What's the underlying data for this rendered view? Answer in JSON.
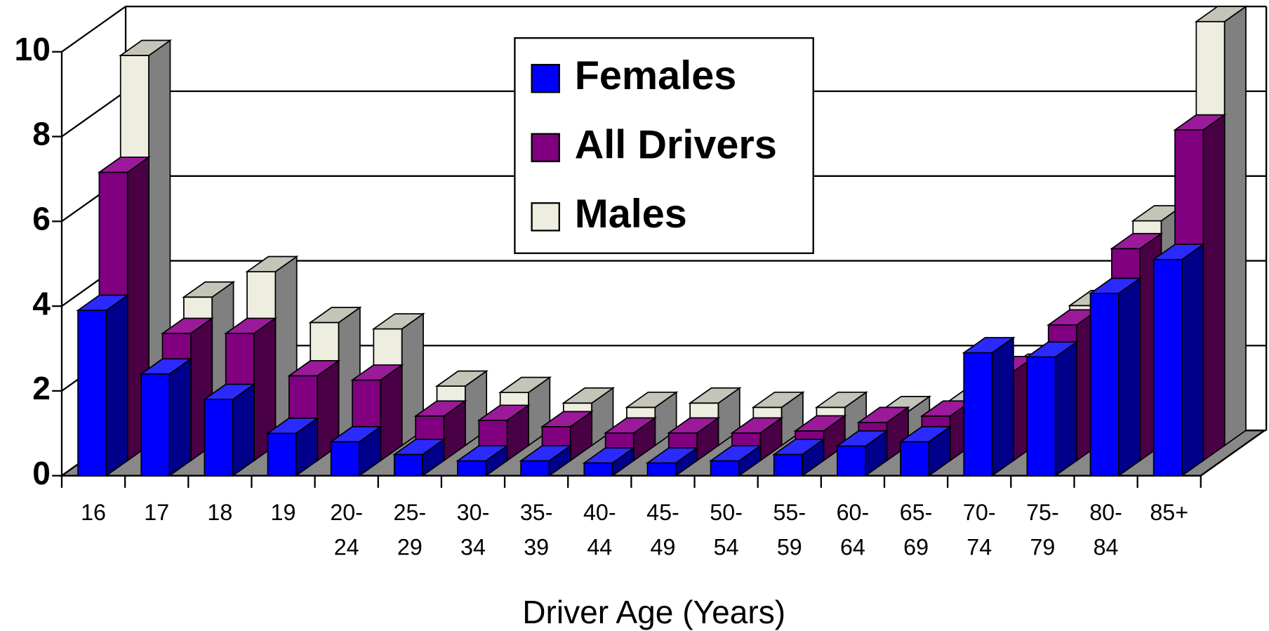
{
  "chart_data": {
    "type": "bar3d",
    "x_label": "Driver Age (Years)",
    "categories": [
      "16",
      "17",
      "18",
      "19",
      "20-\n24",
      "25-\n29",
      "30-\n34",
      "35-\n39",
      "40-\n44",
      "45-\n49",
      "50-\n54",
      "55-\n59",
      "60-\n64",
      "65-\n69",
      "70-\n74",
      "75-\n79",
      "80-\n84",
      "85+"
    ],
    "series": [
      {
        "name": "Females",
        "color": "#0000ff",
        "values": [
          3.9,
          2.4,
          1.8,
          1.0,
          0.8,
          0.5,
          0.35,
          0.35,
          0.3,
          0.3,
          0.35,
          0.5,
          0.7,
          0.8,
          2.9,
          2.8,
          4.3,
          5.1
        ]
      },
      {
        "name": "All Drivers",
        "color": "#800080",
        "values": [
          6.8,
          3.0,
          3.0,
          2.0,
          1.9,
          1.05,
          0.95,
          0.8,
          0.65,
          0.65,
          0.65,
          0.7,
          0.9,
          1.05,
          2.1,
          3.2,
          5.0,
          7.8
        ]
      },
      {
        "name": "Males",
        "color": "#eeeee0",
        "values": [
          9.2,
          3.5,
          4.1,
          2.9,
          2.75,
          1.4,
          1.25,
          1.0,
          0.9,
          1.0,
          0.9,
          0.9,
          0.8,
          0.95,
          1.8,
          3.3,
          5.3,
          10.0
        ]
      }
    ],
    "ylim": [
      0,
      10
    ],
    "yticks": [
      0,
      2,
      4,
      6,
      8,
      10
    ],
    "grid": true
  }
}
